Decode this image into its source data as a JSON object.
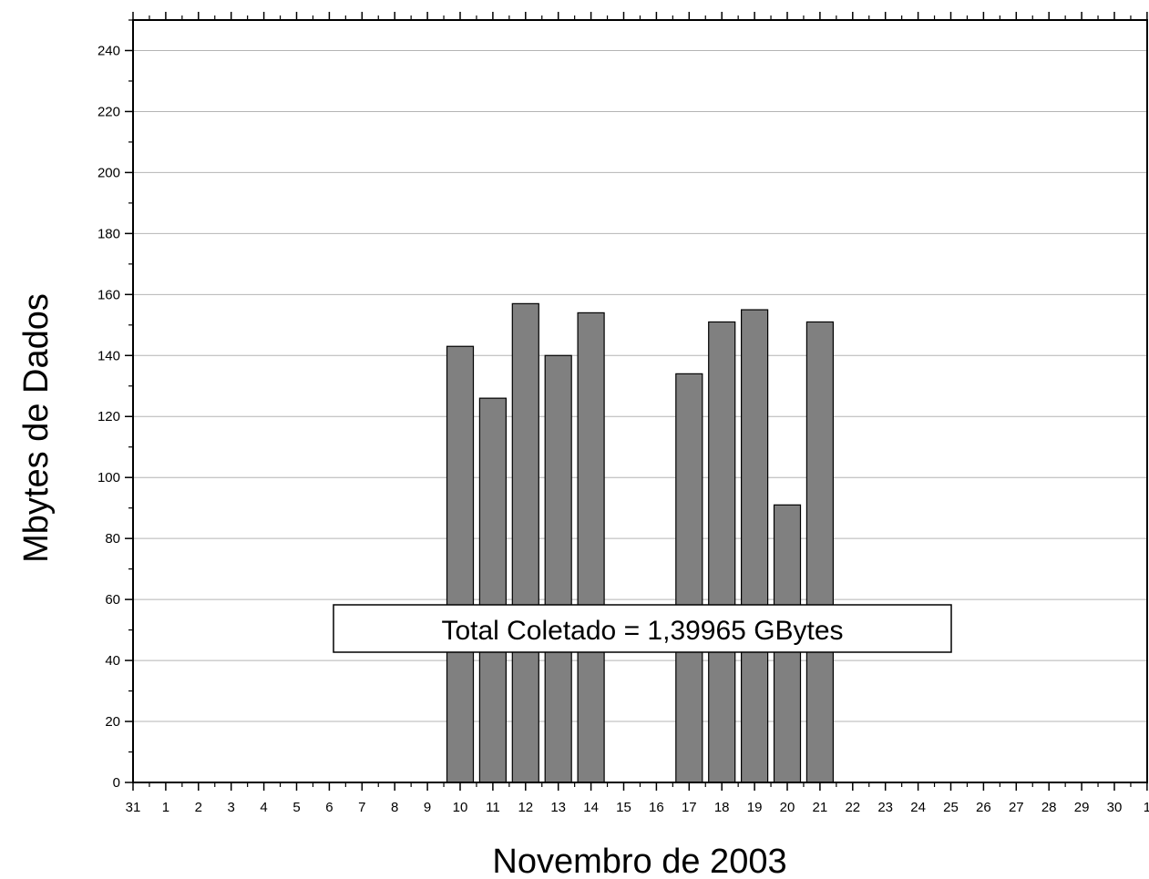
{
  "chart_data": {
    "type": "bar",
    "ylabel": "Mbytes de Dados",
    "xlabel": "Novembro de 2003",
    "x_tick_labels": [
      "31",
      "1",
      "2",
      "3",
      "4",
      "5",
      "6",
      "7",
      "8",
      "9",
      "10",
      "11",
      "12",
      "13",
      "14",
      "15",
      "16",
      "17",
      "18",
      "19",
      "20",
      "21",
      "22",
      "23",
      "24",
      "25",
      "26",
      "27",
      "28",
      "29",
      "30",
      "1"
    ],
    "y_ticks": [
      0,
      20,
      40,
      60,
      80,
      100,
      120,
      140,
      160,
      180,
      200,
      220,
      240
    ],
    "ylim": [
      0,
      250
    ],
    "grid": true,
    "bar_color": "#808080",
    "categories": [
      "10",
      "11",
      "12",
      "13",
      "14",
      "17",
      "18",
      "19",
      "20",
      "21"
    ],
    "values": [
      143,
      126,
      157,
      140,
      154,
      134,
      151,
      155,
      91,
      151
    ],
    "annotation": "Total Coletado = 1,39965 GBytes"
  }
}
